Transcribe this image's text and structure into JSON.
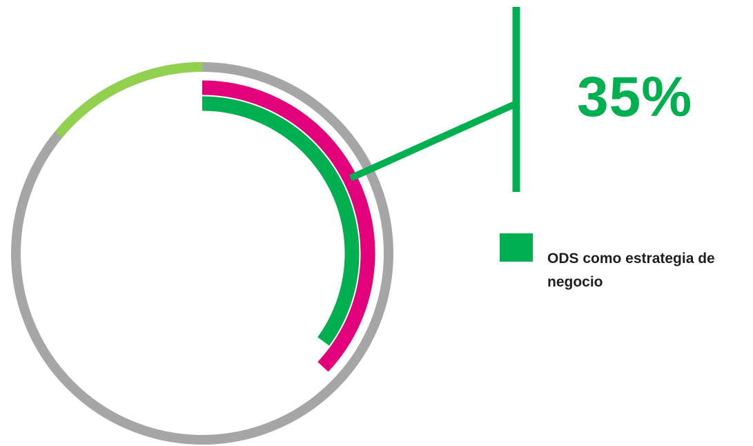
{
  "chart_data": {
    "type": "radial-bar",
    "title": "",
    "series": [
      {
        "name": "ODS como estrategia de negocio",
        "value": 35,
        "value_label": "35%",
        "color": "#00b050"
      }
    ],
    "background_rings": [
      {
        "value": 37,
        "color": "#e3007b"
      },
      {
        "value": 14,
        "color": "#92d050",
        "direction": "counterclockwise"
      }
    ],
    "track_color": "#a6a6a6",
    "value_range": [
      0,
      100
    ]
  },
  "callout": {
    "value_text": "35%",
    "color": "#00b050"
  },
  "legend": {
    "label": "ODS como estrategia de negocio",
    "swatch_color": "#00b050"
  }
}
